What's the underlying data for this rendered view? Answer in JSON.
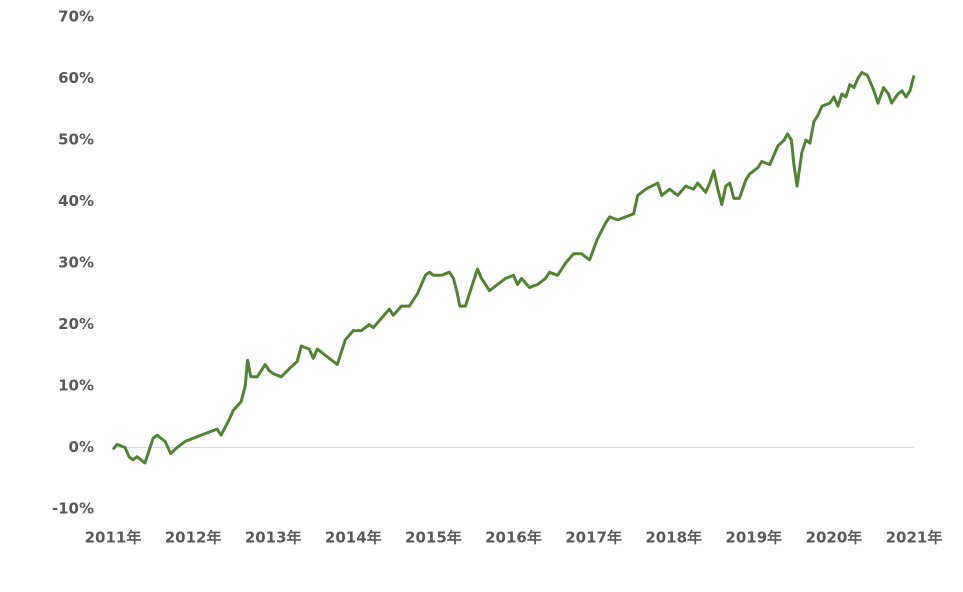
{
  "chart_data": {
    "type": "line",
    "x": [
      2011.0,
      2011.05,
      2011.15,
      2011.2,
      2011.25,
      2011.3,
      2011.35,
      2011.4,
      2011.5,
      2011.55,
      2011.65,
      2011.72,
      2011.8,
      2011.9,
      2012.0,
      2012.1,
      2012.2,
      2012.3,
      2012.35,
      2012.45,
      2012.5,
      2012.6,
      2012.65,
      2012.68,
      2012.72,
      2012.8,
      2012.9,
      2012.95,
      2013.0,
      2013.1,
      2013.2,
      2013.3,
      2013.35,
      2013.45,
      2013.5,
      2013.55,
      2013.65,
      2013.75,
      2013.8,
      2013.9,
      2014.0,
      2014.1,
      2014.2,
      2014.25,
      2014.35,
      2014.45,
      2014.5,
      2014.6,
      2014.7,
      2014.8,
      2014.9,
      2014.95,
      2015.0,
      2015.1,
      2015.2,
      2015.25,
      2015.3,
      2015.33,
      2015.4,
      2015.45,
      2015.5,
      2015.55,
      2015.6,
      2015.65,
      2015.7,
      2015.8,
      2015.9,
      2016.0,
      2016.05,
      2016.1,
      2016.2,
      2016.3,
      2016.4,
      2016.45,
      2016.55,
      2016.65,
      2016.75,
      2016.85,
      2016.95,
      2017.05,
      2017.15,
      2017.2,
      2017.3,
      2017.4,
      2017.5,
      2017.55,
      2017.65,
      2017.8,
      2017.85,
      2017.95,
      2018.05,
      2018.15,
      2018.25,
      2018.3,
      2018.4,
      2018.45,
      2018.5,
      2018.55,
      2018.6,
      2018.65,
      2018.7,
      2018.75,
      2018.82,
      2018.9,
      2018.95,
      2019.0,
      2019.05,
      2019.1,
      2019.2,
      2019.3,
      2019.38,
      2019.42,
      2019.47,
      2019.5,
      2019.54,
      2019.6,
      2019.65,
      2019.7,
      2019.75,
      2019.8,
      2019.85,
      2019.95,
      2020.0,
      2020.05,
      2020.1,
      2020.15,
      2020.2,
      2020.25,
      2020.3,
      2020.35,
      2020.42,
      2020.5,
      2020.55,
      2020.62,
      2020.68,
      2020.72,
      2020.8,
      2020.85,
      2020.9,
      2020.95,
      2021.0
    ],
    "series": [
      {
        "color": "#548235",
        "values": [
          -0.3,
          0.5,
          0,
          -1.5,
          -2,
          -1.5,
          -2,
          -2.5,
          1.5,
          2,
          1,
          -1,
          0,
          1,
          1.5,
          2,
          2.5,
          3,
          2,
          4.5,
          6,
          7.5,
          10,
          14.2,
          11.5,
          11.5,
          13.5,
          12.5,
          12,
          11.5,
          12.8,
          14,
          16.5,
          16,
          14.5,
          16,
          15,
          14,
          13.5,
          17.5,
          19,
          19,
          20,
          19.5,
          21,
          22.5,
          21.5,
          23,
          23,
          25,
          28,
          28.5,
          28,
          28,
          28.5,
          27.5,
          25,
          23,
          23,
          25,
          27,
          29,
          27.5,
          26.5,
          25.5,
          26.5,
          27.5,
          28,
          26.5,
          27.5,
          26,
          26.5,
          27.5,
          28.5,
          28,
          30,
          31.5,
          31.5,
          30.5,
          34,
          36.5,
          37.5,
          37,
          37.5,
          38,
          41,
          42,
          43,
          41,
          42,
          41,
          42.5,
          42,
          43,
          41.5,
          43,
          45,
          42,
          39.5,
          42.5,
          43,
          40.5,
          40.5,
          43.5,
          44.5,
          45,
          45.5,
          46.5,
          46,
          49,
          50,
          51,
          50,
          46,
          42.5,
          48,
          50,
          49.5,
          53,
          54,
          55.5,
          56,
          57,
          55.5,
          57.5,
          57,
          59,
          58.5,
          60,
          61,
          60.5,
          58,
          56,
          58.5,
          57.5,
          56,
          57.5,
          58,
          57,
          58,
          60.5
        ]
      }
    ],
    "xlim": [
      2011,
      2021
    ],
    "xticks": [
      {
        "value": 2011,
        "label": "2011年"
      },
      {
        "value": 2012,
        "label": "2012年"
      },
      {
        "value": 2013,
        "label": "2013年"
      },
      {
        "value": 2014,
        "label": "2014年"
      },
      {
        "value": 2015,
        "label": "2015年"
      },
      {
        "value": 2016,
        "label": "2016年"
      },
      {
        "value": 2017,
        "label": "2017年"
      },
      {
        "value": 2018,
        "label": "2018年"
      },
      {
        "value": 2019,
        "label": "2019年"
      },
      {
        "value": 2020,
        "label": "2020年"
      },
      {
        "value": 2021,
        "label": "2021年"
      }
    ],
    "ylim": [
      -10,
      70
    ],
    "yticks": [
      {
        "value": -10,
        "label": "-10%"
      },
      {
        "value": 0,
        "label": "0%"
      },
      {
        "value": 10,
        "label": "10%"
      },
      {
        "value": 20,
        "label": "20%"
      },
      {
        "value": 30,
        "label": "30%"
      },
      {
        "value": 40,
        "label": "40%"
      },
      {
        "value": 50,
        "label": "50%"
      },
      {
        "value": 60,
        "label": "60%"
      },
      {
        "value": 70,
        "label": "70%"
      }
    ],
    "grid": false
  }
}
